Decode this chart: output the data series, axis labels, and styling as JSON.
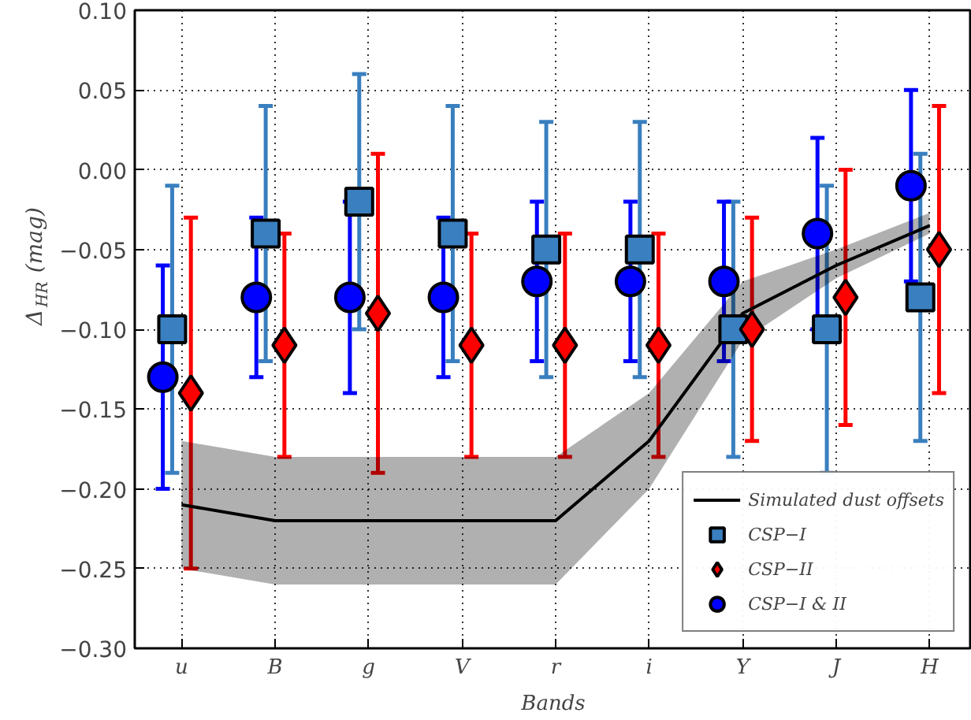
{
  "chart_data": {
    "type": "scatter",
    "xlabel": "Bands",
    "ylabel": "Δ$_{HR}$ (mag)",
    "ylim": [
      -0.3,
      0.1
    ],
    "categories": [
      "u",
      "B",
      "g",
      "V",
      "r",
      "i",
      "Y",
      "J",
      "H"
    ],
    "yticks": [
      {
        "value": -0.3,
        "label": "−0.30"
      },
      {
        "value": -0.25,
        "label": "−0.25"
      },
      {
        "value": -0.2,
        "label": "−0.20"
      },
      {
        "value": -0.15,
        "label": "−0.15"
      },
      {
        "value": -0.1,
        "label": "−0.10"
      },
      {
        "value": -0.05,
        "label": "−0.05"
      },
      {
        "value": 0,
        "label": "0.00"
      },
      {
        "value": 0.05,
        "label": "0.05"
      },
      {
        "value": 0.1,
        "label": "0.10"
      }
    ],
    "grid": true,
    "legend": "bottom right",
    "series": [
      {
        "name": "Simulated dust offsets",
        "type": "line",
        "color": "#000000",
        "values": [
          -0.21,
          -0.22,
          -0.22,
          -0.22,
          -0.22,
          -0.17,
          -0.09,
          -0.06,
          -0.035
        ],
        "lower": [
          -0.25,
          -0.26,
          -0.26,
          -0.26,
          -0.26,
          -0.2,
          -0.107,
          -0.068,
          -0.04
        ],
        "upper": [
          -0.17,
          -0.18,
          -0.18,
          -0.18,
          -0.18,
          -0.14,
          -0.07,
          -0.05,
          -0.027
        ]
      },
      {
        "name": "CSP−I",
        "marker": "square",
        "color": "#3a7fbf",
        "values": [
          -0.1,
          -0.04,
          -0.02,
          -0.04,
          -0.05,
          -0.05,
          -0.1,
          -0.1,
          -0.08
        ],
        "errors": [
          [
            -0.19,
            -0.01
          ],
          [
            -0.12,
            0.04
          ],
          [
            -0.1,
            0.06
          ],
          [
            -0.12,
            0.04
          ],
          [
            -0.13,
            0.03
          ],
          [
            -0.13,
            0.03
          ],
          [
            -0.18,
            -0.02
          ],
          [
            -0.19,
            -0.01
          ],
          [
            -0.17,
            0.01
          ]
        ]
      },
      {
        "name": "CSP−II",
        "marker": "diamond",
        "color": "#ff0000",
        "values": [
          -0.14,
          -0.11,
          -0.09,
          -0.11,
          -0.11,
          -0.11,
          -0.1,
          -0.08,
          -0.05
        ],
        "errors": [
          [
            -0.25,
            -0.03
          ],
          [
            -0.18,
            -0.04
          ],
          [
            -0.19,
            0.01
          ],
          [
            -0.18,
            -0.04
          ],
          [
            -0.18,
            -0.04
          ],
          [
            -0.18,
            -0.04
          ],
          [
            -0.17,
            -0.03
          ],
          [
            -0.16,
            0.0
          ],
          [
            -0.14,
            0.04
          ]
        ]
      },
      {
        "name": "CSP−I & II",
        "marker": "circle",
        "color": "#0000ff",
        "values": [
          -0.13,
          -0.08,
          -0.08,
          -0.08,
          -0.07,
          -0.07,
          -0.07,
          -0.04,
          -0.01
        ],
        "errors": [
          [
            -0.2,
            -0.06
          ],
          [
            -0.13,
            -0.03
          ],
          [
            -0.14,
            -0.02
          ],
          [
            -0.13,
            -0.03
          ],
          [
            -0.12,
            -0.02
          ],
          [
            -0.12,
            -0.02
          ],
          [
            -0.12,
            -0.02
          ],
          [
            -0.1,
            0.02
          ],
          [
            -0.07,
            0.05
          ]
        ]
      }
    ]
  }
}
